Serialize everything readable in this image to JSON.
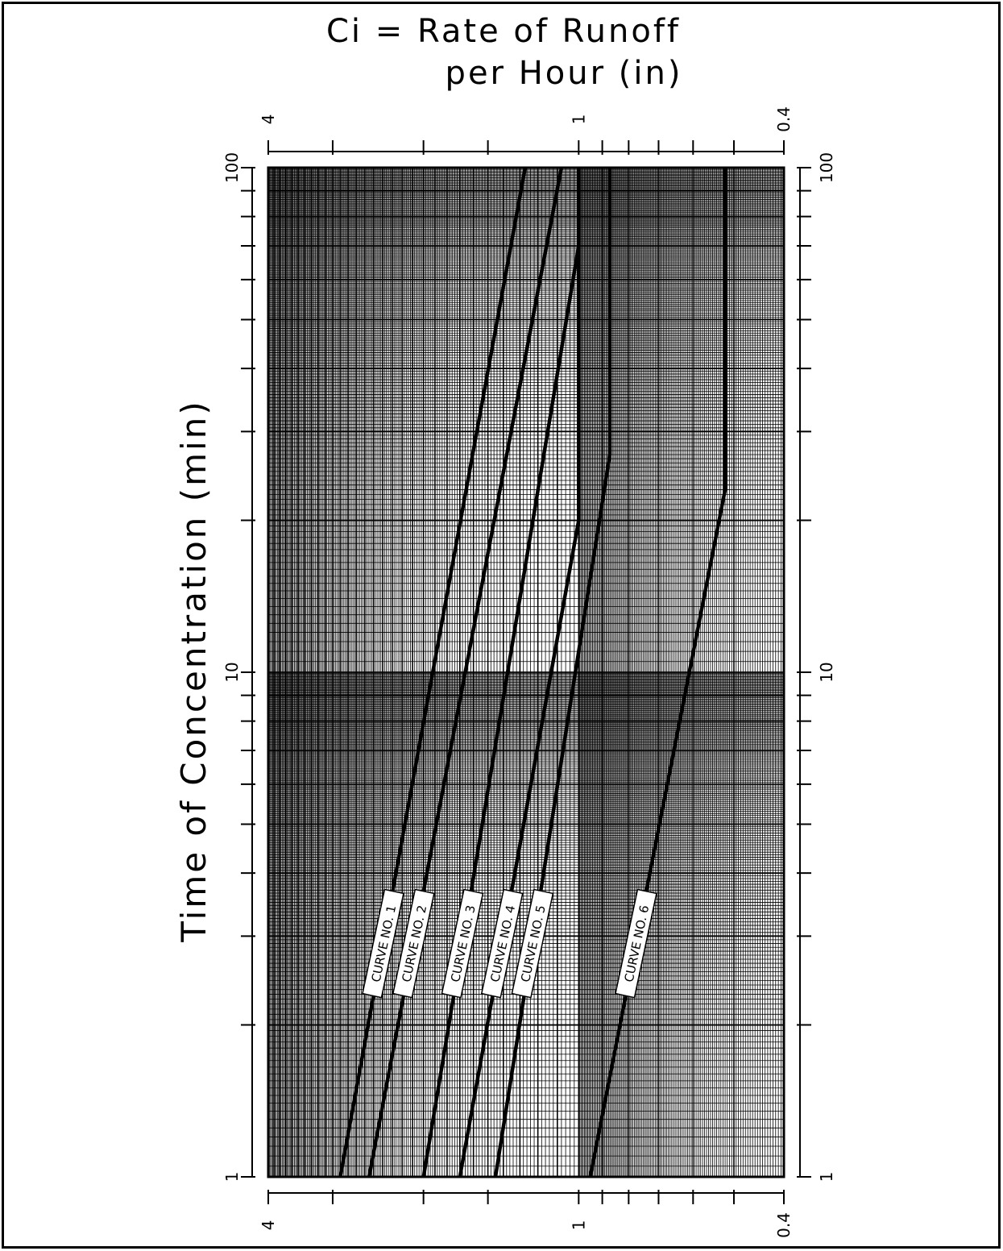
{
  "chart_data": {
    "type": "line",
    "title_line1": "Ci = Rate of Runoff",
    "title_line2": "per Hour (in)",
    "ylabel": "Time of Concentration (min)",
    "x_scale": "log",
    "y_scale": "log",
    "xlim": [
      4,
      0.4
    ],
    "ylim": [
      1,
      100
    ],
    "x_ticks": [
      4,
      3,
      2,
      1.5,
      1,
      0.9,
      0.8,
      0.7,
      0.6,
      0.5,
      0.4
    ],
    "x_tick_labels": [
      {
        "value": 4,
        "text": "4"
      },
      {
        "value": 1,
        "text": "1"
      },
      {
        "value": 0.4,
        "text": "0.4"
      }
    ],
    "y_tick_labels": [
      {
        "value": 1,
        "text": "1"
      },
      {
        "value": 10,
        "text": "10"
      },
      {
        "value": 100,
        "text": "100"
      }
    ],
    "y_minor_ticks": [
      2,
      3,
      4,
      5,
      6,
      7,
      8,
      9,
      20,
      30,
      40,
      50,
      60,
      70,
      80,
      90
    ],
    "grid": true,
    "line_color": "#000000",
    "series": [
      {
        "name": "CURVE NO. 1",
        "label_y": 2.9,
        "x": [
          2.9,
          1.27
        ],
        "y": [
          1,
          100
        ]
      },
      {
        "name": "CURVE NO. 2",
        "label_y": 2.9,
        "x": [
          2.55,
          1.08
        ],
        "y": [
          1,
          100
        ]
      },
      {
        "name": "CURVE NO. 3",
        "label_y": 2.9,
        "x": [
          2.0,
          1.0,
          1.0
        ],
        "y": [
          1,
          70,
          100
        ]
      },
      {
        "name": "CURVE NO. 4",
        "label_y": 2.9,
        "x": [
          1.7,
          1.0,
          1.0
        ],
        "y": [
          1,
          20,
          100
        ]
      },
      {
        "name": "CURVE NO. 5",
        "label_y": 2.9,
        "x": [
          1.45,
          0.87,
          0.87
        ],
        "y": [
          1,
          27,
          100
        ]
      },
      {
        "name": "CURVE NO. 6",
        "label_y": 2.9,
        "x": [
          0.95,
          0.52,
          0.52
        ],
        "y": [
          1,
          23,
          100
        ]
      }
    ]
  }
}
